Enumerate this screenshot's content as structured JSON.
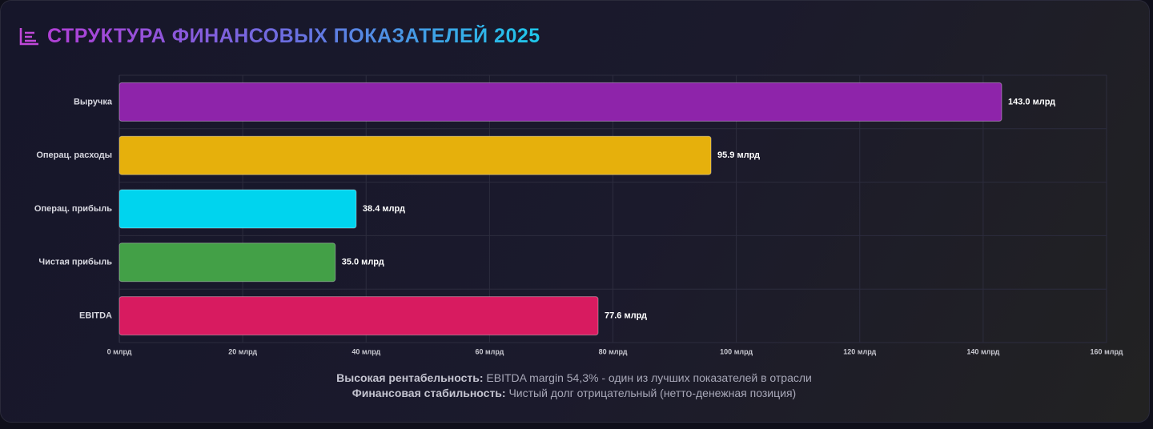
{
  "chart_data": {
    "type": "hbar",
    "title": "СТРУКТУРА ФИНАНСОВЫХ ПОКАЗАТЕЛЕЙ 2025",
    "categories": [
      "Выручка",
      "Операц. расходы",
      "Операц. прибыль",
      "Чистая прибыль",
      "EBITDA"
    ],
    "values": [
      143.0,
      95.9,
      38.4,
      35.0,
      77.6
    ],
    "value_labels": [
      "143.0 млрд",
      "95.9 млрд",
      "38.4 млрд",
      "35.0 млрд",
      "77.6 млрд"
    ],
    "colors": [
      "#8e24aa",
      "#e6b00c",
      "#00d4ee",
      "#43a047",
      "#d81b60"
    ],
    "xlim": [
      0,
      160
    ],
    "xticks": [
      {
        "value": 0,
        "label": "0 млрд"
      },
      {
        "value": 20,
        "label": "20 млрд"
      },
      {
        "value": 40,
        "label": "40 млрд"
      },
      {
        "value": 60,
        "label": "60 млрд"
      },
      {
        "value": 80,
        "label": "80 млрд"
      },
      {
        "value": 100,
        "label": "100 млрд"
      },
      {
        "value": 120,
        "label": "120 млрд"
      },
      {
        "value": 140,
        "label": "140 млрд"
      },
      {
        "value": 160,
        "label": "160 млрд"
      }
    ],
    "grid": true,
    "notes": [
      {
        "label": "Высокая рентабельность:",
        "text": "EBITDA margin 54,3% - один из лучших показателей в отрасли"
      },
      {
        "label": "Финансовая стабильность:",
        "text": "Чистый долг отрицательный (нетто-денежная позиция)"
      }
    ]
  }
}
